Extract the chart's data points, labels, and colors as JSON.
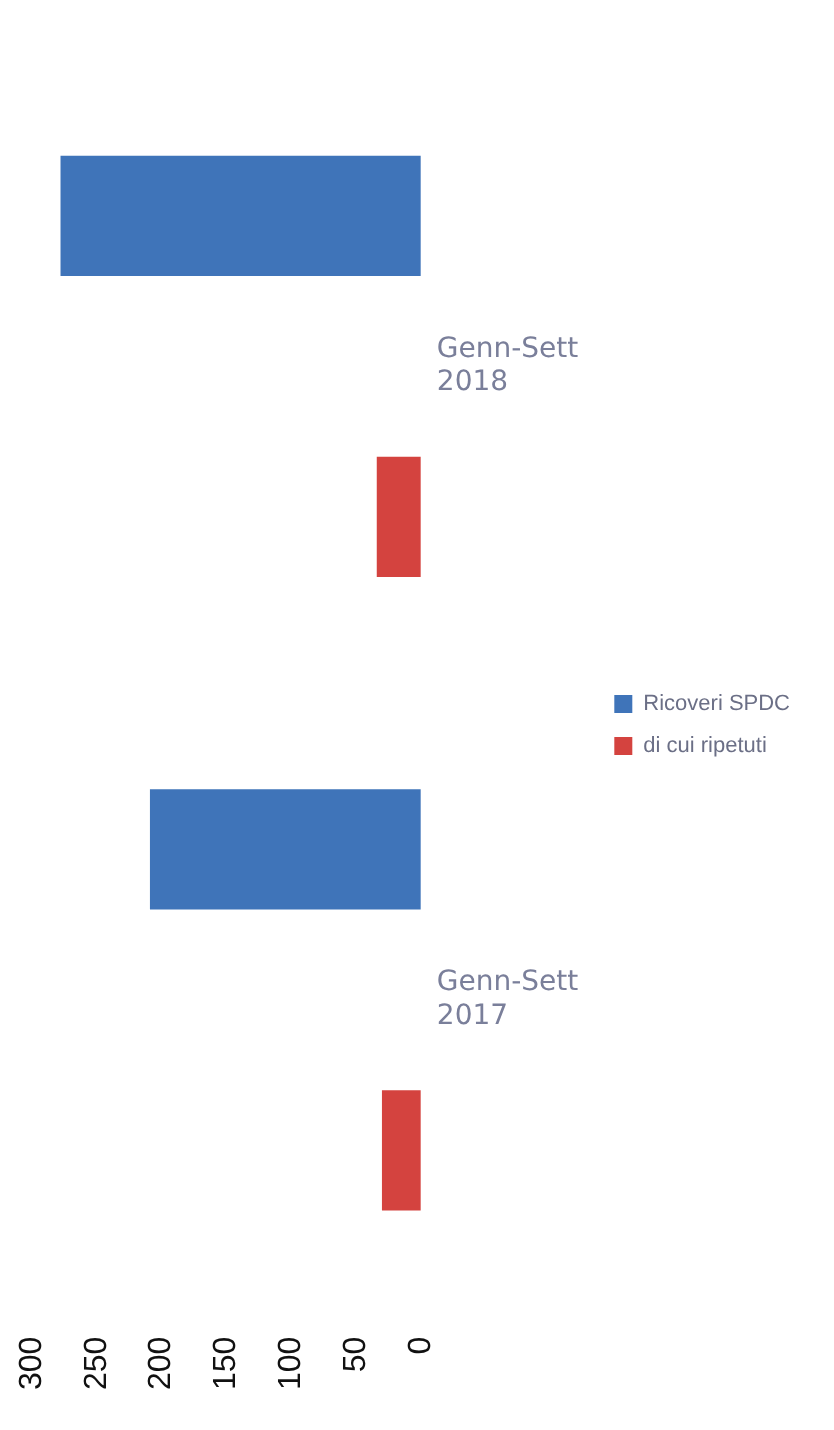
{
  "chart_data": {
    "type": "bar",
    "orientation": "horizontal",
    "categories": [
      "Genn-Sett 2018",
      "Genn-Sett 2017"
    ],
    "series": [
      {
        "name": "Ricoveri SPDC",
        "color": "#3f74b9",
        "values": [
          278,
          209
        ]
      },
      {
        "name": "di cui ripetuti",
        "color": "#d4433f",
        "values": [
          34,
          30
        ]
      }
    ],
    "xlim": [
      300,
      0
    ],
    "xticks": [
      0,
      50,
      100,
      150,
      200,
      250,
      300
    ],
    "grid": false,
    "legend": "right"
  }
}
